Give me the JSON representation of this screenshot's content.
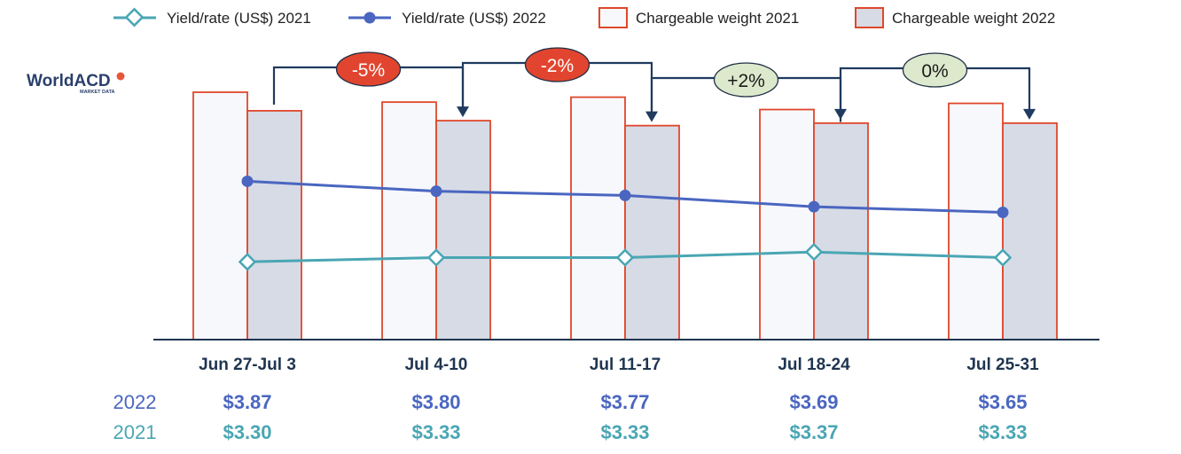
{
  "logo": {
    "name": "WorldACD",
    "tagline": "MARKET DATA",
    "accent": "#e8563a"
  },
  "colors": {
    "rate_2021": "#4aa6b3",
    "rate_2022": "#4a66c0",
    "bar_2021_fill": "#f7f8fc",
    "bar_2022_fill": "#d6dbe6",
    "bar_stroke": "#e0472b",
    "axis": "#1f3550",
    "arrow": "#1f3b5f",
    "badge_down_fill": "#e2452f",
    "badge_up_fill": "#dde9cd"
  },
  "legend": [
    {
      "label": "Yield/rate (US$) 2021",
      "marker": "diamond-line"
    },
    {
      "label": "Yield/rate (US$) 2022",
      "marker": "circle-line"
    },
    {
      "label": "Chargeable weight 2021",
      "marker": "box"
    },
    {
      "label": "Chargeable weight 2022",
      "marker": "box"
    }
  ],
  "chart_data": {
    "type": "bar",
    "categories": [
      "Jun 27-Jul 3",
      "Jul 4-10",
      "Jul 11-17",
      "Jul 18-24",
      "Jul 25-31"
    ],
    "bars": [
      {
        "name": "Chargeable weight 2021",
        "values": [
          100,
          96,
          98,
          93,
          95.5
        ]
      },
      {
        "name": "Chargeable weight 2022",
        "values": [
          92.5,
          88.5,
          86.5,
          87.5,
          87.5
        ]
      }
    ],
    "lines": [
      {
        "name": "Yield/rate (US$) 2022",
        "values": [
          3.87,
          3.8,
          3.77,
          3.69,
          3.65
        ]
      },
      {
        "name": "Yield/rate (US$) 2021",
        "values": [
          3.3,
          3.33,
          3.33,
          3.37,
          3.33
        ]
      }
    ],
    "line_ylim": [
      2.75,
      4.5
    ],
    "changes": [
      "-5%",
      "-2%",
      "+2%",
      "0%"
    ],
    "table": {
      "rows": [
        {
          "year": "2022",
          "values": [
            "$3.87",
            "$3.80",
            "$3.77",
            "$3.69",
            "$3.65"
          ]
        },
        {
          "year": "2021",
          "values": [
            "$3.30",
            "$3.33",
            "$3.33",
            "$3.37",
            "$3.33"
          ]
        }
      ]
    },
    "grid": false,
    "legend_position": "top"
  }
}
